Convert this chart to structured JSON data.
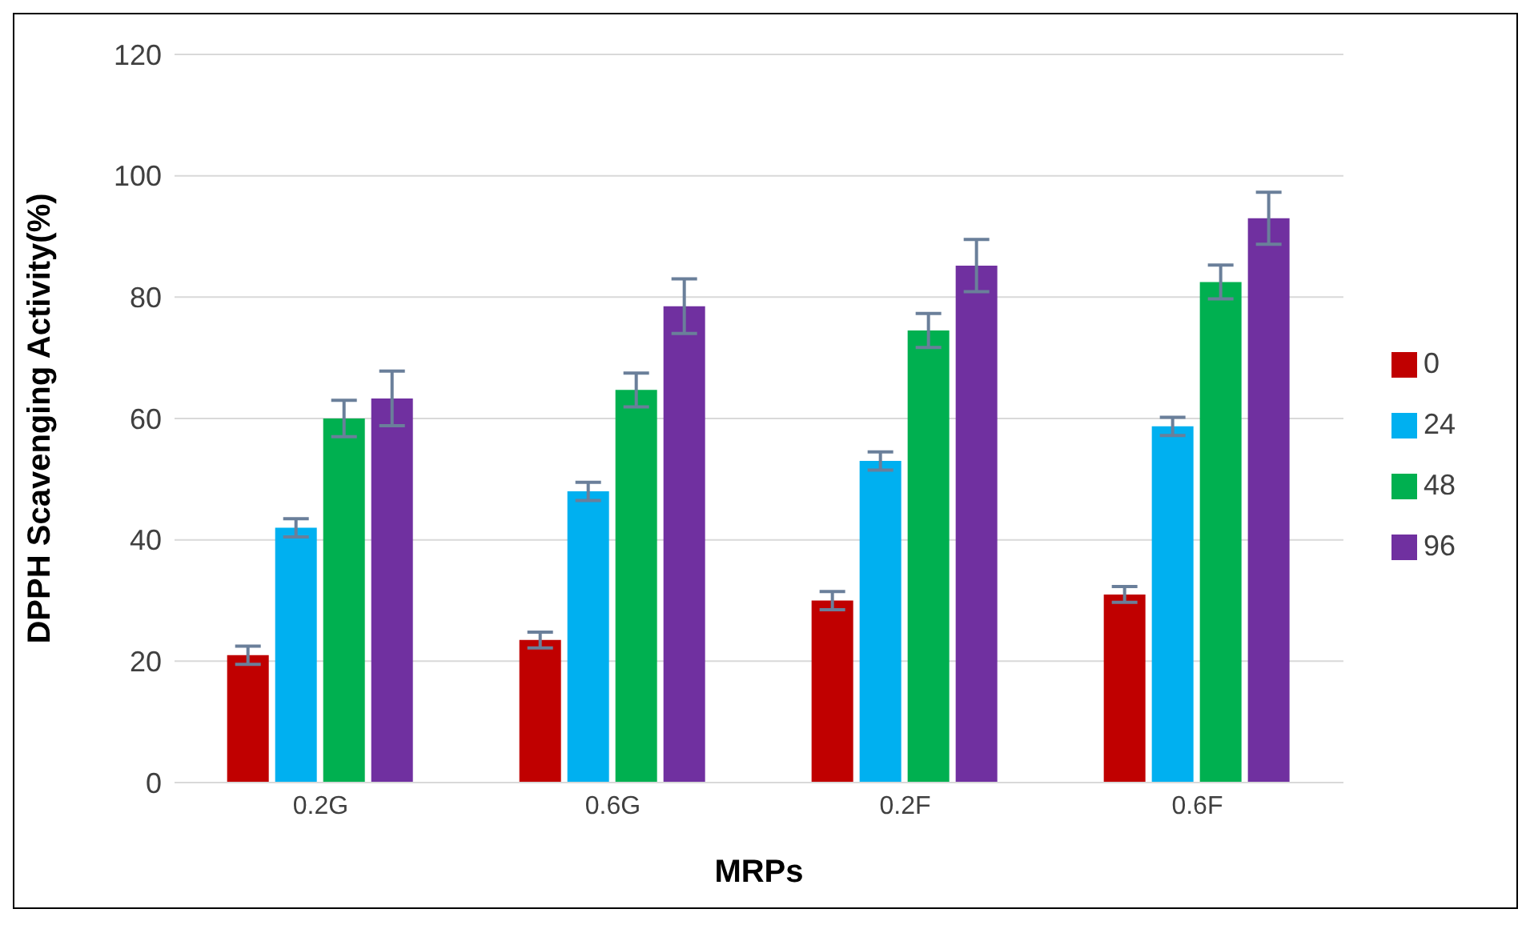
{
  "chart_data": {
    "type": "bar",
    "xlabel": "MRPs",
    "ylabel": "DPPH Scavenging Activity(%)",
    "categories": [
      "0.2G",
      "0.6G",
      "0.2F",
      "0.6F"
    ],
    "series": [
      {
        "name": "0",
        "color": "#c00000",
        "values": [
          21,
          23.5,
          30,
          31
        ],
        "errors": [
          1.5,
          1.3,
          1.5,
          1.3
        ]
      },
      {
        "name": "24",
        "color": "#00b0f0",
        "values": [
          42,
          48,
          53,
          58.7
        ],
        "errors": [
          1.5,
          1.5,
          1.5,
          1.5
        ]
      },
      {
        "name": "48",
        "color": "#00b050",
        "values": [
          60,
          64.7,
          74.5,
          82.5
        ],
        "errors": [
          3,
          2.8,
          2.8,
          2.8
        ]
      },
      {
        "name": "96",
        "color": "#7030a0",
        "values": [
          63.3,
          78.5,
          85.2,
          93
        ],
        "errors": [
          4.5,
          4.5,
          4.3,
          4.3
        ]
      }
    ],
    "ylim": [
      0,
      120
    ],
    "yticks": [
      0,
      20,
      40,
      60,
      80,
      100,
      120
    ],
    "grid": "y",
    "legend": "right"
  }
}
